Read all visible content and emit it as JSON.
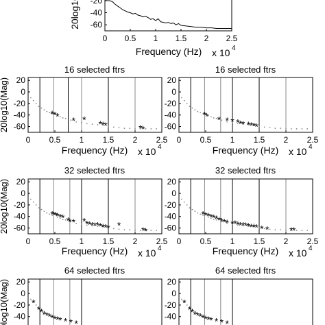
{
  "chart_data": [
    {
      "type": "line",
      "title": "",
      "xlabel": "Frequency (Hz)",
      "ylabel": "20log10",
      "x_exponent_label": "x 10",
      "x_exponent": "4",
      "xlim": [
        0,
        2.5
      ],
      "ylim": [
        -70,
        -10
      ],
      "xticks": [
        "0",
        "0.5",
        "1",
        "1.5",
        "2",
        "2.5"
      ],
      "yticks": [
        "-20",
        "-40",
        "-60"
      ],
      "series": [
        {
          "color": "#000000",
          "x": [
            0,
            0.02,
            0.05,
            0.08,
            0.1,
            0.15,
            0.2,
            0.25,
            0.3,
            0.35,
            0.4,
            0.45,
            0.5,
            0.55,
            0.6,
            0.65,
            0.7,
            0.75,
            0.8,
            0.85,
            0.9,
            0.95,
            1.0,
            1.05,
            1.1,
            1.15,
            1.2,
            1.25,
            1.3,
            1.35,
            1.4,
            1.45,
            1.5,
            1.6,
            1.7,
            1.8,
            1.9,
            2.0,
            2.1,
            2.2,
            2.3,
            2.4,
            2.5
          ],
          "y": [
            -5,
            -8,
            -12,
            -15,
            -18,
            -22,
            -26,
            -29,
            -32,
            -35,
            -37,
            -39,
            -40,
            -42,
            -41,
            -44,
            -45,
            -47,
            -46,
            -48,
            -51,
            -50,
            -53,
            -50,
            -55,
            -56,
            -57,
            -56,
            -58,
            -57,
            -60,
            -58,
            -61,
            -62,
            -63,
            -64,
            -64,
            -65,
            -65,
            -66,
            -66,
            -66,
            -66
          ]
        }
      ]
    },
    {
      "type": "scatter",
      "title": "16 selected ftrs",
      "xlabel": "Frequency (Hz)",
      "ylabel": "20log10(Mag)",
      "x_exponent_label": "x 10",
      "x_exponent": "4",
      "xlim": [
        0,
        2.5
      ],
      "ylim": [
        -70,
        25
      ],
      "xticks": [
        "0",
        "0.5",
        "1",
        "1.5",
        "2",
        "2.5"
      ],
      "yticks": [
        "20",
        "0",
        "-20",
        "-40",
        "-60"
      ],
      "vlines_dark": [
        0.22,
        0.75,
        1.5
      ],
      "vlines_light": [
        0.48,
        1.0,
        2.0
      ],
      "dots": {
        "x": [
          0.05,
          0.1,
          0.15,
          0.2,
          0.25,
          0.3,
          0.35,
          0.4,
          0.45,
          0.55,
          0.6,
          0.65,
          0.7,
          0.8,
          0.9,
          1.0,
          1.1,
          1.2,
          1.3,
          1.4,
          1.5,
          1.6,
          1.7,
          1.8,
          1.9,
          2.0,
          2.1,
          2.2,
          2.3,
          2.4
        ],
        "y": [
          -10,
          -15,
          -20,
          -25,
          -28,
          -31,
          -34,
          -36,
          -38,
          -41,
          -43,
          -45,
          -46,
          -49,
          -52,
          -53,
          -55,
          -56,
          -57,
          -58,
          -60,
          -61,
          -62,
          -63,
          -63,
          -64,
          -64,
          -64,
          -64,
          -64
        ]
      },
      "stars": {
        "x": [
          0.45,
          0.5,
          0.55,
          0.85,
          1.05,
          1.35,
          1.4,
          1.45,
          2.1,
          2.15
        ],
        "y": [
          -38,
          -40,
          -42,
          -50,
          -48,
          -56,
          -57,
          -58,
          -63,
          -64
        ]
      }
    },
    {
      "type": "scatter",
      "title": "16 selected ftrs",
      "xlabel": "Frequency (Hz)",
      "ylabel": "",
      "x_exponent_label": "x 10",
      "x_exponent": "4",
      "xlim": [
        0,
        2.5
      ],
      "ylim": [
        -70,
        25
      ],
      "xticks": [
        "0",
        "0.5",
        "1",
        "1.5",
        "2",
        "2.5"
      ],
      "yticks": [
        "20",
        "0",
        "-20",
        "-40",
        "-60"
      ],
      "vlines_dark": [
        0.22,
        1.0,
        1.5
      ],
      "vlines_light": [
        0.48,
        0.78,
        2.0
      ],
      "dots": {
        "x": [
          0.05,
          0.1,
          0.15,
          0.2,
          0.25,
          0.3,
          0.35,
          0.4,
          0.45,
          0.55,
          0.6,
          0.65,
          0.7,
          0.8,
          0.9,
          1.0,
          1.1,
          1.2,
          1.3,
          1.4,
          1.5,
          1.6,
          1.7,
          1.8,
          1.9,
          2.0,
          2.1,
          2.2,
          2.3,
          2.4
        ],
        "y": [
          -10,
          -15,
          -20,
          -25,
          -28,
          -31,
          -34,
          -36,
          -38,
          -41,
          -43,
          -45,
          -46,
          -49,
          -52,
          -53,
          -55,
          -56,
          -57,
          -58,
          -60,
          -61,
          -62,
          -63,
          -63,
          -64,
          -64,
          -64,
          -64,
          -64
        ]
      },
      "stars": {
        "x": [
          0.48,
          0.52,
          0.75,
          0.9,
          1.0,
          1.1,
          1.15,
          1.2,
          1.3,
          1.35,
          1.4,
          1.45
        ],
        "y": [
          -40,
          -42,
          -48,
          -50,
          -51,
          -53,
          -55,
          -56,
          -57,
          -58,
          -59,
          -60
        ]
      }
    },
    {
      "type": "scatter",
      "title": "32 selected ftrs",
      "xlabel": "Frequency (Hz)",
      "ylabel": "20log10(Mag)",
      "x_exponent_label": "x 10",
      "x_exponent": "4",
      "xlim": [
        0,
        2.5
      ],
      "ylim": [
        -70,
        25
      ],
      "xticks": [
        "0",
        "0.5",
        "1",
        "1.5",
        "2",
        "2.5"
      ],
      "yticks": [
        "20",
        "0",
        "-20",
        "-40",
        "-60"
      ],
      "vlines_dark": [
        0.22,
        1.0,
        1.5
      ],
      "vlines_light": [
        0.48,
        0.78,
        2.0
      ],
      "dots": {
        "x": [
          0.05,
          0.1,
          0.15,
          0.2,
          0.25,
          0.3,
          0.35,
          0.4,
          0.45,
          0.55,
          0.6,
          0.65,
          0.7,
          0.8,
          0.9,
          1.0,
          1.1,
          1.2,
          1.3,
          1.4,
          1.5,
          1.6,
          1.7,
          1.8,
          1.9,
          2.0,
          2.1,
          2.2,
          2.3,
          2.4
        ],
        "y": [
          -10,
          -15,
          -20,
          -25,
          -28,
          -31,
          -34,
          -36,
          -38,
          -41,
          -43,
          -45,
          -46,
          -49,
          -52,
          -53,
          -55,
          -56,
          -57,
          -58,
          -60,
          -61,
          -62,
          -63,
          -63,
          -64,
          -64,
          -64,
          -64,
          -64
        ]
      },
      "stars": {
        "x": [
          0.45,
          0.48,
          0.52,
          0.55,
          0.6,
          0.65,
          0.75,
          0.78,
          0.85,
          1.05,
          1.1,
          1.15,
          1.2,
          1.25,
          1.3,
          1.35,
          1.4,
          1.45,
          1.5,
          1.7,
          2.15,
          2.2
        ],
        "y": [
          -36,
          -37,
          -38,
          -39,
          -41,
          -42,
          -47,
          -49,
          -50,
          -48,
          -53,
          -54,
          -55,
          -56,
          -55,
          -57,
          -58,
          -59,
          -60,
          -55,
          -64,
          -65
        ]
      }
    },
    {
      "type": "scatter",
      "title": "32 selected ftrs",
      "xlabel": "Frequency (Hz)",
      "ylabel": "",
      "x_exponent_label": "x 10",
      "x_exponent": "4",
      "xlim": [
        0,
        2.5
      ],
      "ylim": [
        -70,
        25
      ],
      "xticks": [
        "0",
        "0.5",
        "1",
        "1.5",
        "2",
        "2.5"
      ],
      "yticks": [
        "20",
        "0",
        "-20",
        "-40",
        "-60"
      ],
      "vlines_dark": [
        0.22,
        1.0,
        1.5
      ],
      "vlines_light": [
        0.48,
        0.78,
        2.0
      ],
      "dots": {
        "x": [
          0.05,
          0.1,
          0.15,
          0.2,
          0.25,
          0.3,
          0.35,
          0.4,
          0.45,
          0.55,
          0.6,
          0.65,
          0.7,
          0.8,
          0.9,
          1.0,
          1.1,
          1.2,
          1.3,
          1.4,
          1.5,
          1.6,
          1.7,
          1.8,
          1.9,
          2.0,
          2.1,
          2.2,
          2.3,
          2.4
        ],
        "y": [
          -10,
          -15,
          -20,
          -25,
          -28,
          -31,
          -34,
          -36,
          -38,
          -41,
          -43,
          -45,
          -46,
          -49,
          -52,
          -53,
          -55,
          -56,
          -57,
          -58,
          -60,
          -61,
          -62,
          -63,
          -63,
          -64,
          -64,
          -64,
          -64,
          -64
        ]
      },
      "stars": {
        "x": [
          0.45,
          0.5,
          0.55,
          0.6,
          0.65,
          0.7,
          0.75,
          0.8,
          0.85,
          0.9,
          1.0,
          1.05,
          1.1,
          1.15,
          1.2,
          1.25,
          1.3,
          1.35,
          1.4,
          1.45,
          1.55,
          1.65,
          2.1,
          2.15
        ],
        "y": [
          -36,
          -38,
          -39,
          -41,
          -42,
          -44,
          -46,
          -48,
          -50,
          -51,
          -53,
          -52,
          -54,
          -55,
          -55,
          -56,
          -57,
          -58,
          -58,
          -59,
          -61,
          -62,
          -64,
          -64
        ]
      }
    },
    {
      "type": "scatter",
      "title": "64 selected ftrs",
      "xlabel": "",
      "ylabel": "20log10(Mag)",
      "xlim": [
        0,
        2.5
      ],
      "ylim": [
        -70,
        25
      ],
      "xticks": [],
      "yticks": [
        "20",
        "0",
        "-20",
        "-40"
      ],
      "vlines_dark": [
        0.22,
        1.0
      ],
      "vlines_light": [
        0.48,
        0.78
      ],
      "dots": {
        "x": [
          0.05,
          0.1,
          0.15,
          0.2,
          0.25,
          0.3
        ],
        "y": [
          -10,
          -15,
          -20,
          -25,
          -28,
          -31
        ]
      },
      "stars": {
        "x": [
          0.1,
          0.2,
          0.25,
          0.3,
          0.35,
          0.4,
          0.45,
          0.5,
          0.55,
          0.6,
          0.7,
          0.8,
          0.9
        ],
        "y": [
          -16,
          -28,
          -32,
          -36,
          -38,
          -40,
          -42,
          -44,
          -45,
          -46,
          -48,
          -50,
          -52
        ]
      }
    },
    {
      "type": "scatter",
      "title": "64 selected ftrs",
      "xlabel": "",
      "ylabel": "",
      "xlim": [
        0,
        2.5
      ],
      "ylim": [
        -70,
        25
      ],
      "xticks": [],
      "yticks": [
        "20",
        "0",
        "-20",
        "-40"
      ],
      "vlines_dark": [
        0.22,
        1.0
      ],
      "vlines_light": [
        0.48,
        0.78
      ],
      "dots": {
        "x": [
          0.05,
          0.1,
          0.15,
          0.2,
          0.25,
          0.3
        ],
        "y": [
          -10,
          -15,
          -20,
          -25,
          -28,
          -31
        ]
      },
      "stars": {
        "x": [
          0.1,
          0.2,
          0.25,
          0.3,
          0.35,
          0.4,
          0.45,
          0.5,
          0.55,
          0.6,
          0.7,
          0.8,
          0.9
        ],
        "y": [
          -16,
          -28,
          -32,
          -36,
          -38,
          -40,
          -42,
          -44,
          -45,
          -46,
          -48,
          -50,
          -52
        ]
      }
    }
  ],
  "colors": {
    "marker": "#0000cc",
    "dots": "#888888",
    "dark_line": "#000000",
    "light_line": "#888888",
    "axis": "#000000"
  }
}
